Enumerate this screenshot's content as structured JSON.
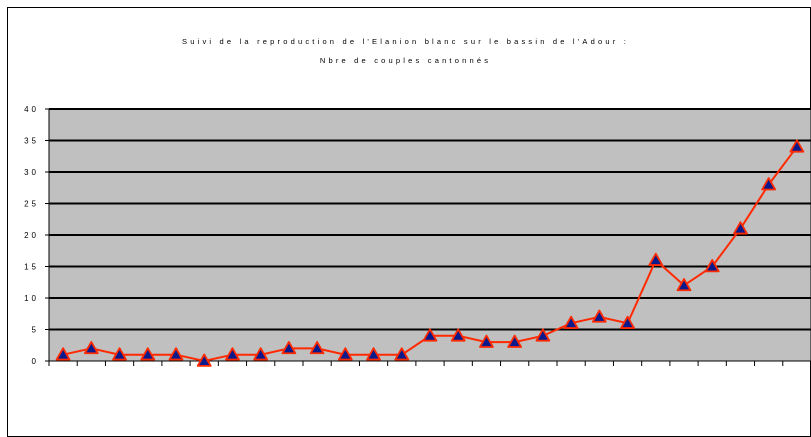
{
  "chart_data": {
    "type": "line",
    "title": "Suivi de la reproduction de l'Elanion blanc sur le bassin de l'Adour :",
    "subtitle": "Nbre de couples cantonnés",
    "xlabel": "",
    "ylabel": "",
    "ylim": [
      0,
      40
    ],
    "y_ticks": [
      "0",
      "5",
      "10",
      "15",
      "20",
      "25",
      "30",
      "35",
      "40"
    ],
    "grid": true,
    "legend": "none",
    "colors": {
      "plot_background": "#c0c0c0",
      "line": "#ff2a00",
      "marker_fill": "#0a1a8c",
      "marker_edge": "#ff2a00",
      "gridline": "#000000"
    },
    "marker": "triangle",
    "series": [
      {
        "values": [
          1,
          2,
          1,
          1,
          1,
          0,
          1,
          1,
          2,
          2,
          1,
          1,
          1,
          4,
          4,
          3,
          3,
          4,
          6,
          7,
          6,
          16,
          12,
          15,
          21,
          28,
          34
        ]
      }
    ]
  }
}
